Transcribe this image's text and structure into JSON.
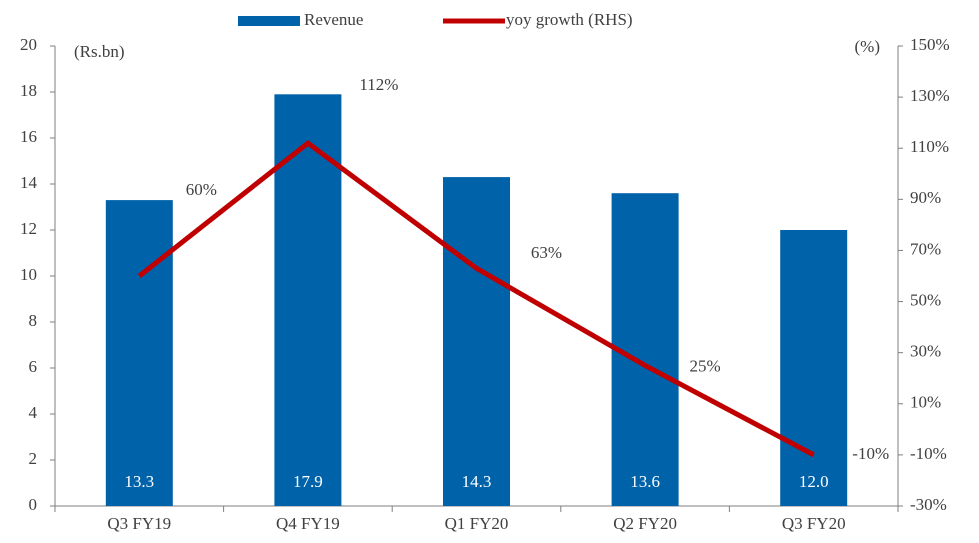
{
  "chart_data": {
    "type": "bar_line",
    "categories": [
      "Q3 FY19",
      "Q4 FY19",
      "Q1 FY20",
      "Q2 FY20",
      "Q3 FY20"
    ],
    "series": [
      {
        "name": "Revenue",
        "color": "#0062a9",
        "values": [
          13.3,
          17.9,
          14.3,
          13.6,
          12.0
        ],
        "value_labels": [
          "13.3",
          "17.9",
          "14.3",
          "13.6",
          "12.0"
        ]
      },
      {
        "name": "yoy growth (RHS)",
        "color": "#c00000",
        "axis": "y2",
        "values": [
          60,
          112,
          63,
          25,
          -10
        ],
        "value_labels": [
          "60%",
          "112%",
          "63%",
          "25%",
          "-10%"
        ]
      }
    ],
    "y_unit_label": "(Rs.bn)",
    "y2_unit_label": "(%)",
    "ylim": [
      0,
      20
    ],
    "yticks": [
      0,
      2,
      4,
      6,
      8,
      10,
      12,
      14,
      16,
      18,
      20
    ],
    "y2lim": [
      -30,
      150
    ],
    "y2ticks": [
      {
        "value": -30,
        "label": "-30%"
      },
      {
        "value": -10,
        "label": "-10%"
      },
      {
        "value": 10,
        "label": "10%"
      },
      {
        "value": 30,
        "label": "30%"
      },
      {
        "value": 50,
        "label": "50%"
      },
      {
        "value": 70,
        "label": "70%"
      },
      {
        "value": 90,
        "label": "90%"
      },
      {
        "value": 110,
        "label": "110%"
      },
      {
        "value": 130,
        "label": "130%"
      },
      {
        "value": 150,
        "label": "150%"
      }
    ],
    "legend": "top"
  }
}
